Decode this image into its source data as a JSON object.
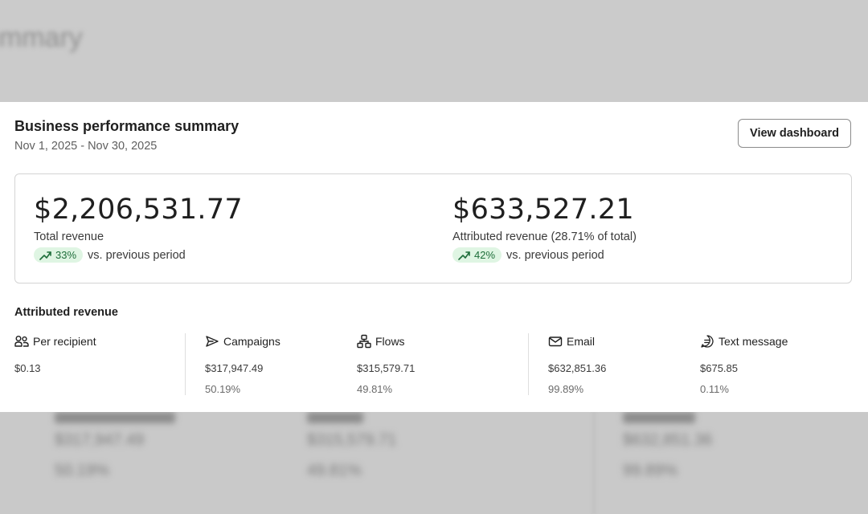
{
  "background": {
    "title_fragment": "ummary",
    "blurred_rows": {
      "values": [
        "$317,947.49",
        "$315,579.71",
        "$632,851.36"
      ],
      "percents": [
        "50.19%",
        "49.81%",
        "99.89%"
      ]
    }
  },
  "header": {
    "title": "Business performance summary",
    "date_range": "Nov 1, 2025 - Nov 30, 2025",
    "view_dashboard_label": "View dashboard"
  },
  "kpis": [
    {
      "value": "$2,206,531.77",
      "label": "Total revenue",
      "change": "33%",
      "change_suffix": "vs. previous period",
      "trend_icon": "trend-up-icon"
    },
    {
      "value": "$633,527.21",
      "label": "Attributed revenue (28.71% of total)",
      "change": "42%",
      "change_suffix": "vs. previous period",
      "trend_icon": "trend-up-icon"
    }
  ],
  "attributed": {
    "title": "Attributed revenue",
    "metrics": [
      {
        "icon": "people-icon",
        "label": "Per recipient",
        "value": "$0.13",
        "percent": ""
      },
      {
        "icon": "send-icon",
        "label": "Campaigns",
        "value": "$317,947.49",
        "percent": "50.19%"
      },
      {
        "icon": "flows-icon",
        "label": "Flows",
        "value": "$315,579.71",
        "percent": "49.81%"
      },
      {
        "icon": "email-icon",
        "label": "Email",
        "value": "$632,851.36",
        "percent": "99.89%"
      },
      {
        "icon": "sms-icon",
        "label": "Text message",
        "value": "$675.85",
        "percent": "0.11%"
      }
    ]
  },
  "colors": {
    "pill_bg": "#dff5e3",
    "pill_text": "#1e6e3a",
    "border": "#d4d4d4"
  }
}
